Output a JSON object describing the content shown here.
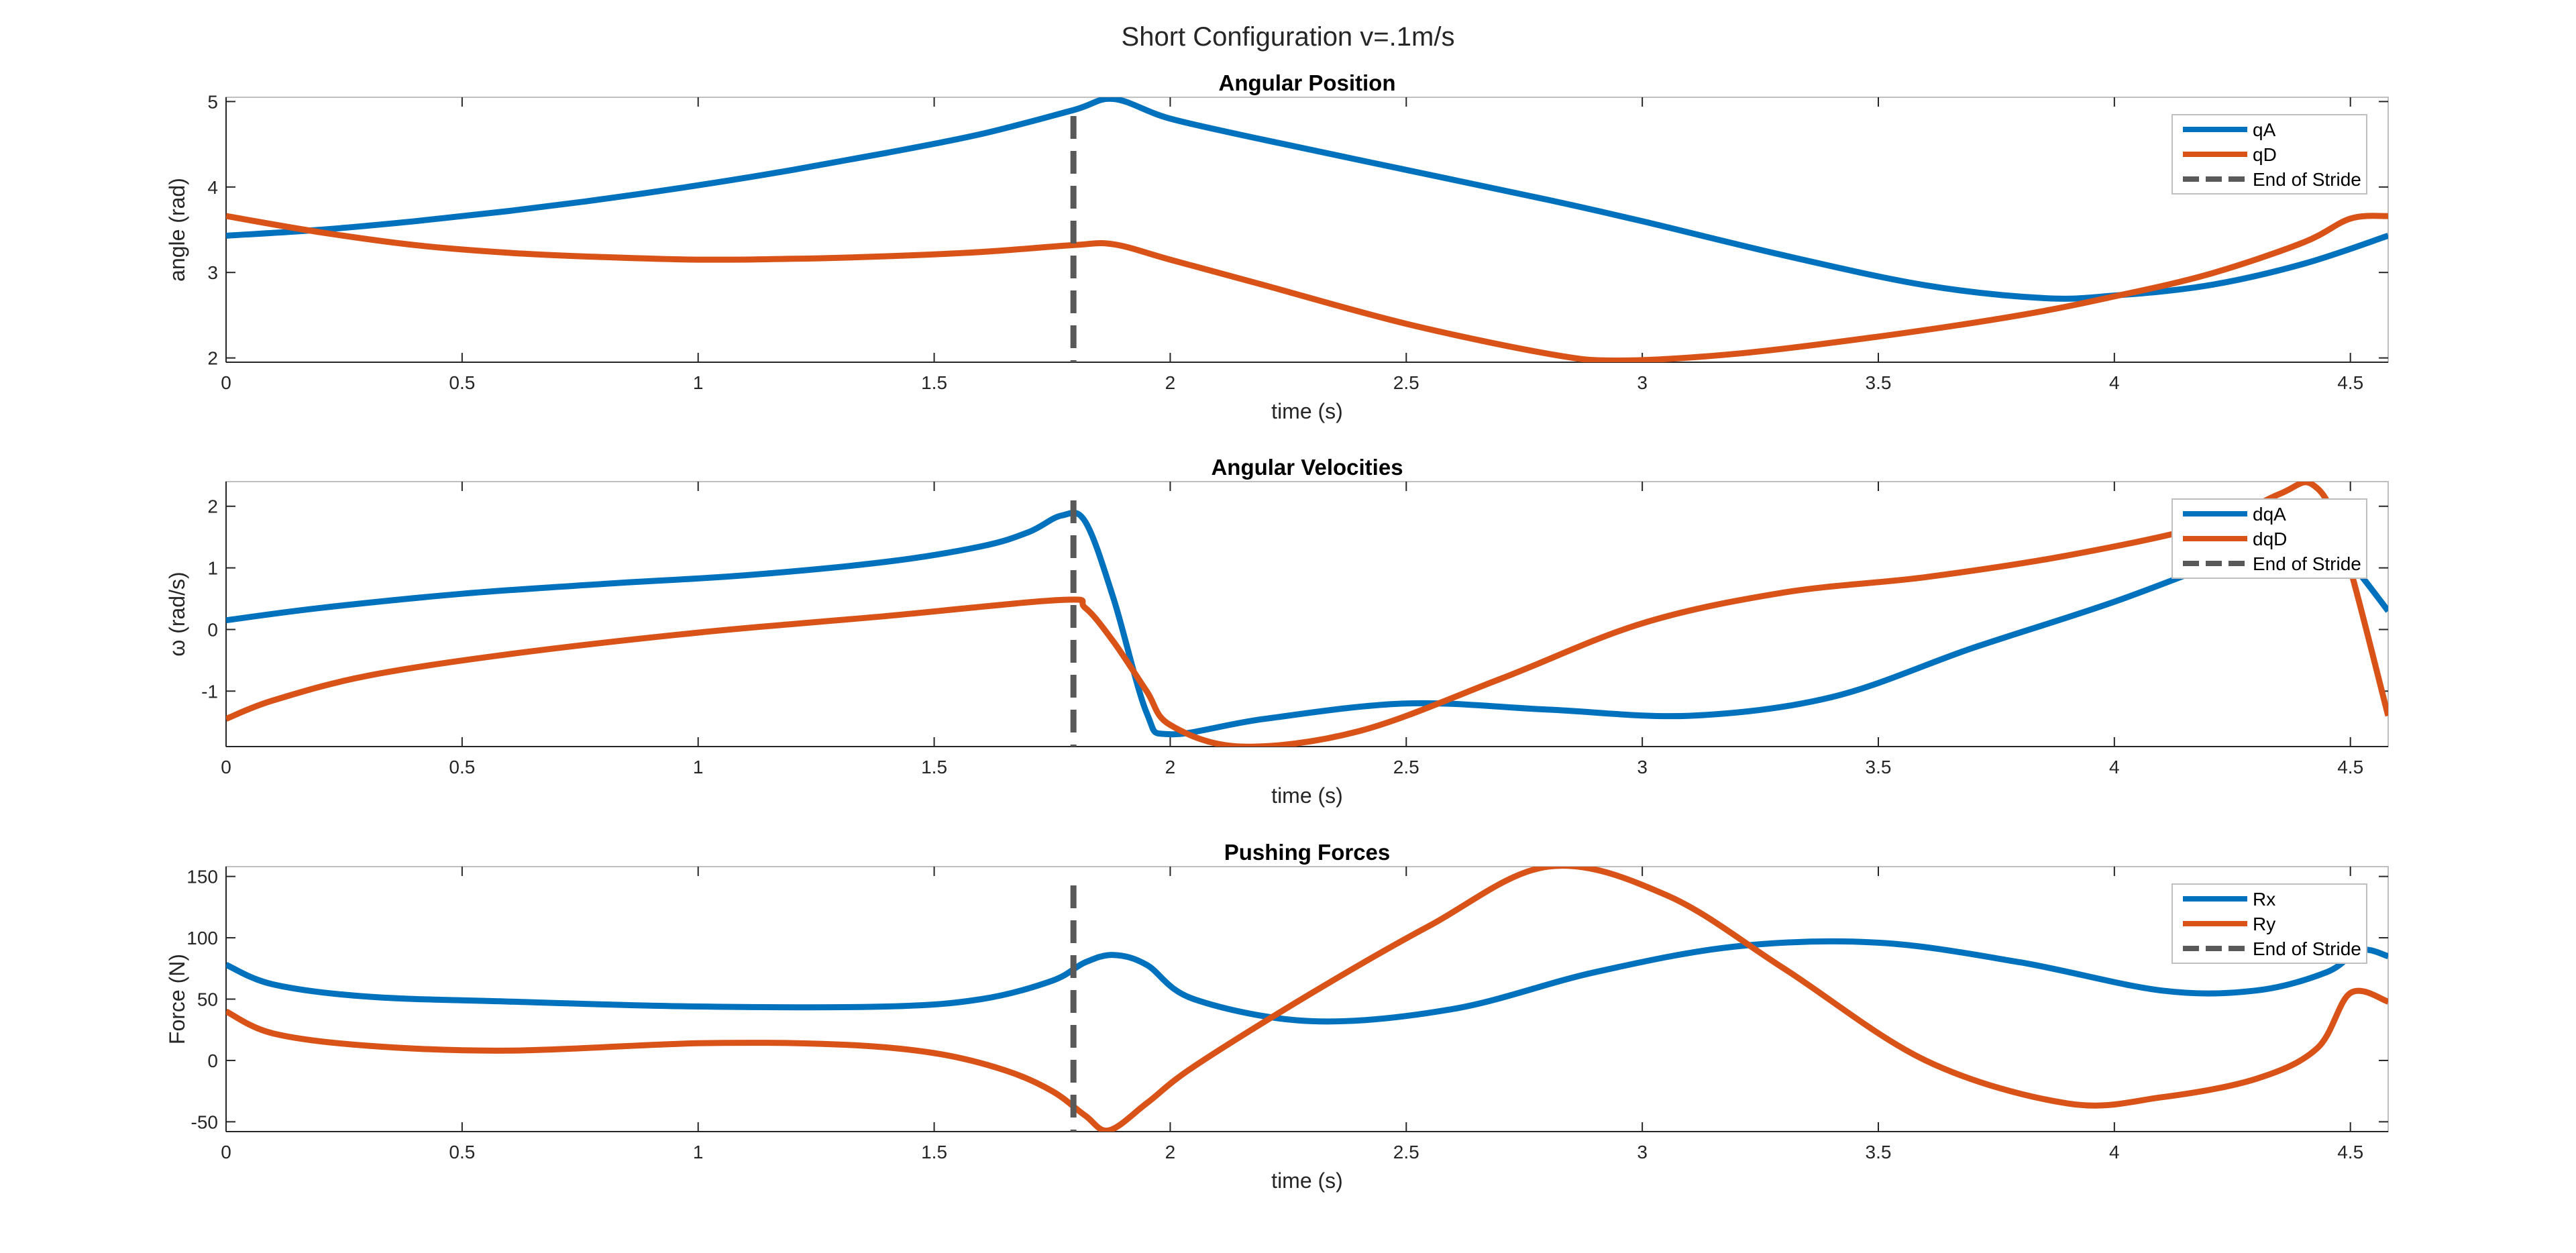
{
  "figure": {
    "title": "Short Configuration v=.1m/s"
  },
  "colors": {
    "series1": "#0072BD",
    "series2": "#D95319",
    "marker": "#595959",
    "axes": "#262626",
    "grid_box": "#bfbfbf"
  },
  "chart_data": [
    {
      "type": "line",
      "title": "Angular Position",
      "xlabel": "time (s)",
      "ylabel": "angle (rad)",
      "xlim": [
        0,
        4.58
      ],
      "ylim": [
        1.95,
        5.05
      ],
      "xticks": [
        0,
        0.5,
        1,
        1.5,
        2,
        2.5,
        3,
        3.5,
        4,
        4.5
      ],
      "xtick_labels": [
        "0",
        "0.5",
        "1",
        "1.5",
        "2",
        "2.5",
        "3",
        "3.5",
        "4",
        "4.5"
      ],
      "yticks": [
        2,
        3,
        4,
        5
      ],
      "ytick_labels": [
        "2",
        "3",
        "4",
        "5"
      ],
      "grid": false,
      "legend_position": "top-right",
      "vline": {
        "x": 1.795,
        "name": "End of Stride"
      },
      "series": [
        {
          "name": "qA",
          "x": [
            0,
            0.2,
            0.4,
            0.6,
            0.8,
            1.0,
            1.2,
            1.4,
            1.6,
            1.795,
            1.88,
            2.0,
            2.2,
            2.5,
            2.8,
            3.0,
            3.3,
            3.6,
            3.85,
            4.0,
            4.2,
            4.4,
            4.58
          ],
          "y": [
            3.43,
            3.5,
            3.6,
            3.72,
            3.86,
            4.02,
            4.2,
            4.4,
            4.62,
            4.9,
            5.03,
            4.8,
            4.55,
            4.2,
            3.85,
            3.6,
            3.2,
            2.85,
            2.7,
            2.73,
            2.85,
            3.1,
            3.43
          ]
        },
        {
          "name": "qD",
          "x": [
            0,
            0.2,
            0.4,
            0.6,
            0.8,
            1.0,
            1.2,
            1.4,
            1.6,
            1.795,
            1.88,
            2.0,
            2.2,
            2.5,
            2.8,
            2.95,
            3.2,
            3.5,
            3.8,
            4.0,
            4.2,
            4.4,
            4.5,
            4.58
          ],
          "y": [
            3.66,
            3.47,
            3.32,
            3.23,
            3.18,
            3.15,
            3.16,
            3.19,
            3.24,
            3.32,
            3.33,
            3.15,
            2.85,
            2.4,
            2.05,
            1.97,
            2.05,
            2.25,
            2.5,
            2.72,
            2.98,
            3.35,
            3.63,
            3.66
          ]
        }
      ]
    },
    {
      "type": "line",
      "title": "Angular Velocities",
      "xlabel": "time (s)",
      "ylabel": "ω (rad/s)",
      "xlim": [
        0,
        4.58
      ],
      "ylim": [
        -1.9,
        2.4
      ],
      "xticks": [
        0,
        0.5,
        1,
        1.5,
        2,
        2.5,
        3,
        3.5,
        4,
        4.5
      ],
      "xtick_labels": [
        "0",
        "0.5",
        "1",
        "1.5",
        "2",
        "2.5",
        "3",
        "3.5",
        "4",
        "4.5"
      ],
      "yticks": [
        -1,
        0,
        1,
        2
      ],
      "ytick_labels": [
        "-1",
        "0",
        "1",
        "2"
      ],
      "grid": false,
      "legend_position": "top-right",
      "vline": {
        "x": 1.795,
        "name": "End of Stride"
      },
      "series": [
        {
          "name": "dqA",
          "x": [
            0,
            0.2,
            0.5,
            0.8,
            1.1,
            1.4,
            1.6,
            1.7,
            1.77,
            1.82,
            1.88,
            1.95,
            2.0,
            2.2,
            2.5,
            2.8,
            3.1,
            3.4,
            3.7,
            4.0,
            4.3,
            4.45,
            4.52,
            4.58
          ],
          "y": [
            0.15,
            0.35,
            0.58,
            0.74,
            0.88,
            1.1,
            1.35,
            1.58,
            1.85,
            1.75,
            0.5,
            -1.35,
            -1.7,
            -1.45,
            -1.2,
            -1.3,
            -1.4,
            -1.1,
            -0.3,
            0.45,
            1.3,
            1.55,
            0.9,
            0.3
          ]
        },
        {
          "name": "dqD",
          "x": [
            0,
            0.1,
            0.3,
            0.6,
            1.0,
            1.4,
            1.77,
            1.82,
            1.88,
            1.95,
            2.0,
            2.15,
            2.4,
            2.7,
            3.0,
            3.3,
            3.6,
            3.9,
            4.2,
            4.35,
            4.42,
            4.48,
            4.58
          ],
          "y": [
            -1.45,
            -1.15,
            -0.75,
            -0.4,
            -0.05,
            0.22,
            0.48,
            0.35,
            -0.2,
            -1.0,
            -1.55,
            -1.9,
            -1.65,
            -0.8,
            0.1,
            0.6,
            0.85,
            1.2,
            1.7,
            2.2,
            2.35,
            1.5,
            -1.4
          ]
        }
      ]
    },
    {
      "type": "line",
      "title": "Pushing Forces",
      "xlabel": "time (s)",
      "ylabel": "Force (N)",
      "xlim": [
        0,
        4.58
      ],
      "ylim": [
        -58,
        158
      ],
      "xticks": [
        0,
        0.5,
        1,
        1.5,
        2,
        2.5,
        3,
        3.5,
        4,
        4.5
      ],
      "xtick_labels": [
        "0",
        "0.5",
        "1",
        "1.5",
        "2",
        "2.5",
        "3",
        "3.5",
        "4",
        "4.5"
      ],
      "yticks": [
        -50,
        0,
        50,
        100,
        150
      ],
      "ytick_labels": [
        "-50",
        "0",
        "50",
        "100",
        "150"
      ],
      "grid": false,
      "legend_position": "top-right",
      "vline": {
        "x": 1.795,
        "name": "End of Stride"
      },
      "series": [
        {
          "name": "Rx",
          "x": [
            0,
            0.1,
            0.3,
            0.6,
            1.0,
            1.4,
            1.6,
            1.75,
            1.82,
            1.88,
            1.95,
            2.05,
            2.3,
            2.6,
            2.9,
            3.2,
            3.5,
            3.8,
            4.1,
            4.3,
            4.45,
            4.52,
            4.58
          ],
          "y": [
            78,
            62,
            52,
            48,
            44,
            44,
            50,
            65,
            80,
            86,
            78,
            50,
            32,
            42,
            72,
            93,
            96,
            80,
            57,
            57,
            72,
            90,
            85
          ]
        },
        {
          "name": "Ry",
          "x": [
            0,
            0.1,
            0.3,
            0.6,
            1.0,
            1.3,
            1.5,
            1.65,
            1.75,
            1.82,
            1.87,
            1.95,
            2.05,
            2.3,
            2.55,
            2.8,
            3.05,
            3.3,
            3.6,
            3.9,
            4.1,
            4.3,
            4.43,
            4.5,
            4.58
          ],
          "y": [
            40,
            22,
            12,
            8,
            14,
            13,
            6,
            -8,
            -25,
            -45,
            -57,
            -35,
            -5,
            55,
            110,
            158,
            135,
            75,
            0,
            -35,
            -30,
            -15,
            10,
            55,
            48
          ]
        }
      ]
    }
  ]
}
